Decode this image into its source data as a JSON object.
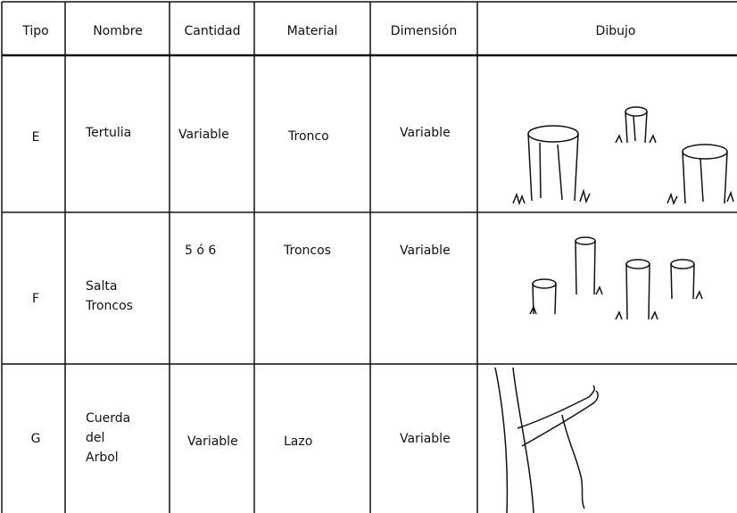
{
  "table": {
    "header": [
      "Tipo",
      "Nombre",
      "Cantidad",
      "Material",
      "Dimensión",
      "Dibujo"
    ],
    "rows": [
      [
        "E",
        "Tertulia",
        "Variable",
        "Tronco",
        "Variable"
      ],
      [
        "F",
        "Salta\nTroncos",
        "5 ó 6",
        "Troncos",
        "Variable"
      ],
      [
        "G",
        "Cuerda\ndel\nArbol",
        "Variable",
        "Lazo",
        "Variable"
      ]
    ]
  }
}
